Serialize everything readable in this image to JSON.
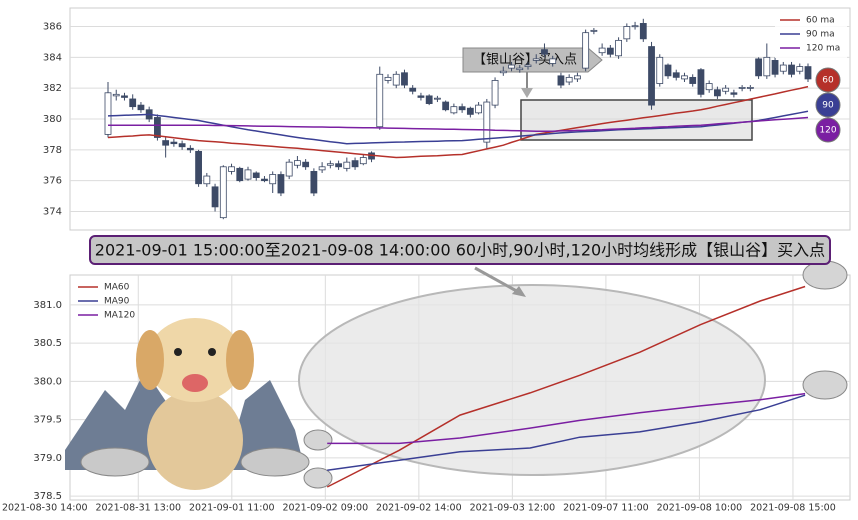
{
  "chart_data": [
    {
      "type": "candlestick",
      "annotation": "【银山谷】买入点",
      "legend": "upper right",
      "grid": true,
      "up_color": "#ffffff",
      "down_color": "#3d4a66",
      "edge_color": "#3d4a66",
      "ylim": [
        372.8,
        387.2
      ],
      "yticks": [
        374,
        376,
        378,
        380,
        382,
        384,
        386
      ],
      "end_labels": [
        "60",
        "90",
        "120"
      ],
      "open": [
        379.0,
        381.5,
        381.5,
        381.3,
        380.9,
        380.6,
        380.1,
        378.6,
        378.5,
        378.4,
        378.1,
        377.9,
        375.8,
        375.6,
        373.6,
        376.6,
        376.8,
        376.1,
        376.5,
        376.1,
        375.8,
        376.4,
        376.3,
        377.0,
        377.2,
        376.6,
        376.7,
        377.0,
        377.1,
        376.8,
        377.3,
        377.1,
        377.8,
        379.5,
        382.5,
        382.2,
        383.0,
        382.0,
        381.5,
        381.5,
        381.3,
        381.1,
        380.4,
        380.8,
        380.7,
        380.4,
        378.5,
        380.9,
        383.0,
        383.3,
        383.2,
        383.4,
        383.8,
        384.5,
        383.6,
        382.8,
        382.4,
        382.6,
        383.3,
        385.7,
        384.3,
        384.6,
        384.1,
        385.2,
        386.0,
        386.2,
        384.7,
        382.3,
        383.5,
        383.0,
        382.6,
        382.7,
        383.2,
        381.9,
        381.9,
        381.8,
        381.7,
        382.0,
        382.0,
        383.9,
        382.8,
        383.8,
        383.1,
        383.5,
        383.1,
        383.4
      ],
      "high": [
        382.4,
        381.9,
        381.7,
        381.6,
        381.1,
        380.8,
        380.3,
        378.8,
        378.7,
        378.6,
        378.3,
        378.0,
        376.5,
        375.8,
        377.0,
        377.1,
        376.9,
        376.9,
        376.6,
        376.3,
        376.6,
        376.6,
        377.4,
        377.6,
        377.4,
        376.8,
        377.2,
        377.3,
        377.3,
        377.5,
        377.5,
        377.7,
        377.9,
        383.4,
        382.9,
        383.1,
        383.2,
        382.2,
        381.7,
        381.6,
        381.5,
        381.2,
        381.0,
        381.0,
        380.8,
        381.1,
        381.3,
        382.7,
        383.4,
        383.7,
        383.5,
        383.7,
        384.2,
        384.9,
        384.1,
        383.0,
        382.9,
        383.0,
        385.8,
        385.9,
        384.9,
        384.8,
        385.3,
        386.2,
        386.3,
        386.5,
        385.0,
        384.2,
        383.6,
        383.2,
        383.0,
        382.9,
        383.3,
        382.5,
        382.1,
        382.2,
        381.9,
        382.2,
        382.2,
        384.0,
        384.9,
        384.0,
        383.7,
        383.7,
        383.6,
        383.6
      ],
      "low": [
        378.8,
        381.2,
        381.2,
        380.6,
        380.4,
        379.8,
        378.6,
        377.5,
        378.2,
        378.0,
        377.8,
        375.6,
        375.6,
        374.0,
        373.5,
        376.4,
        375.9,
        376.0,
        376.0,
        375.9,
        375.2,
        375.0,
        376.1,
        376.8,
        376.7,
        375.0,
        376.5,
        376.8,
        376.7,
        376.6,
        376.7,
        377.0,
        377.2,
        379.3,
        382.3,
        382.0,
        382.0,
        381.6,
        381.2,
        380.9,
        381.1,
        380.5,
        380.3,
        380.4,
        380.1,
        380.3,
        378.1,
        380.7,
        382.8,
        383.1,
        383.0,
        383.2,
        383.6,
        384.0,
        383.4,
        382.0,
        382.2,
        382.4,
        383.1,
        385.5,
        384.1,
        384.0,
        383.9,
        385.0,
        385.8,
        385.0,
        380.6,
        382.1,
        382.6,
        382.5,
        382.4,
        382.1,
        381.4,
        381.7,
        381.3,
        381.6,
        381.4,
        381.8,
        381.8,
        382.6,
        382.6,
        382.7,
        382.9,
        382.7,
        382.9,
        382.4
      ],
      "close": [
        381.7,
        381.6,
        381.4,
        380.8,
        380.6,
        380.0,
        378.8,
        378.3,
        378.4,
        378.2,
        378.0,
        375.8,
        376.3,
        374.3,
        376.9,
        376.9,
        376.0,
        376.7,
        376.2,
        376.0,
        376.4,
        375.2,
        377.2,
        377.3,
        376.9,
        375.2,
        376.9,
        377.1,
        376.9,
        377.2,
        376.9,
        377.5,
        377.4,
        382.9,
        382.7,
        382.9,
        382.2,
        381.8,
        381.4,
        381.0,
        381.35,
        380.6,
        380.8,
        380.6,
        380.3,
        380.9,
        381.1,
        382.5,
        383.1,
        383.5,
        383.3,
        383.5,
        383.9,
        384.2,
        383.9,
        382.2,
        382.7,
        382.8,
        385.6,
        385.75,
        384.6,
        384.2,
        385.1,
        386.0,
        386.05,
        385.2,
        380.9,
        384.0,
        382.8,
        382.7,
        382.8,
        382.3,
        381.6,
        382.3,
        381.5,
        382.0,
        381.6,
        382.05,
        382.05,
        382.8,
        384.0,
        382.9,
        383.5,
        382.9,
        383.4,
        382.6
      ],
      "series": [
        {
          "name": "60 ma",
          "color": "#b5302a",
          "values": [
            378.8,
            378.83,
            378.87,
            378.9,
            378.94,
            378.97,
            378.91,
            378.85,
            378.78,
            378.72,
            378.66,
            378.6,
            378.56,
            378.52,
            378.48,
            378.43,
            378.39,
            378.35,
            378.31,
            378.27,
            378.22,
            378.18,
            378.14,
            378.1,
            378.05,
            378.0,
            377.95,
            377.9,
            377.85,
            377.8,
            377.75,
            377.7,
            377.65,
            377.6,
            377.55,
            377.5,
            377.52,
            377.55,
            377.58,
            377.6,
            377.62,
            377.65,
            377.68,
            377.7,
            377.82,
            377.94,
            378.06,
            378.18,
            378.3,
            378.48,
            378.65,
            378.83,
            379.0,
            379.09,
            379.18,
            379.26,
            379.35,
            379.44,
            379.52,
            379.61,
            379.7,
            379.78,
            379.85,
            379.92,
            380.0,
            380.08,
            380.15,
            380.22,
            380.3,
            380.38,
            380.45,
            380.52,
            380.6,
            380.71,
            380.83,
            380.94,
            381.06,
            381.17,
            381.29,
            381.4,
            381.52,
            381.63,
            381.75,
            381.87,
            381.98,
            382.1
          ]
        },
        {
          "name": "90 ma",
          "color": "#3a3f94",
          "values": [
            380.2,
            380.22,
            380.24,
            380.26,
            380.28,
            380.3,
            380.23,
            380.17,
            380.1,
            380.03,
            379.97,
            379.9,
            379.8,
            379.7,
            379.6,
            379.5,
            379.4,
            379.3,
            379.22,
            379.13,
            379.05,
            378.97,
            378.88,
            378.8,
            378.73,
            378.67,
            378.6,
            378.53,
            378.47,
            378.4,
            378.42,
            378.43,
            378.45,
            378.47,
            378.48,
            378.5,
            378.51,
            378.53,
            378.54,
            378.55,
            378.56,
            378.58,
            378.59,
            378.6,
            378.64,
            378.68,
            378.72,
            378.76,
            378.8,
            378.84,
            378.89,
            378.93,
            378.97,
            379.01,
            379.06,
            379.1,
            379.13,
            379.16,
            379.19,
            379.21,
            379.24,
            379.27,
            379.3,
            379.32,
            379.34,
            379.36,
            379.38,
            379.4,
            379.42,
            379.44,
            379.46,
            379.48,
            379.5,
            379.56,
            379.61,
            379.67,
            379.73,
            379.79,
            379.84,
            379.9,
            380.0,
            380.1,
            380.2,
            380.3,
            380.4,
            380.5
          ]
        },
        {
          "name": "120 ma",
          "color": "#7a1fa2",
          "values": [
            379.6,
            379.6,
            379.6,
            379.6,
            379.6,
            379.6,
            379.6,
            379.6,
            379.6,
            379.6,
            379.6,
            379.6,
            379.59,
            379.58,
            379.58,
            379.57,
            379.56,
            379.55,
            379.54,
            379.53,
            379.53,
            379.52,
            379.51,
            379.5,
            379.49,
            379.48,
            379.48,
            379.47,
            379.46,
            379.45,
            379.44,
            379.43,
            379.43,
            379.42,
            379.41,
            379.4,
            379.39,
            379.38,
            379.37,
            379.36,
            379.35,
            379.34,
            379.33,
            379.32,
            379.31,
            379.3,
            379.29,
            379.27,
            379.26,
            379.25,
            379.24,
            379.22,
            379.21,
            379.2,
            379.21,
            379.23,
            379.24,
            379.26,
            379.27,
            379.29,
            379.3,
            379.33,
            379.35,
            379.38,
            379.4,
            379.43,
            379.45,
            379.48,
            379.5,
            379.53,
            379.55,
            379.58,
            379.6,
            379.64,
            379.68,
            379.72,
            379.75,
            379.79,
            379.83,
            379.87,
            379.91,
            379.95,
            379.98,
            380.02,
            380.06,
            380.1
          ]
        }
      ]
    },
    {
      "type": "line",
      "title": "2021-09-01 15:00:00至2021-09-08 14:00:00 60小时,90小时,120小时均线形成【银山谷】买入点",
      "legend": "upper left",
      "grid": true,
      "xlim": [
        2.7,
        86.1
      ],
      "xticks": [
        {
          "value": 0,
          "label": "2021-08-30 14:00"
        },
        {
          "value": 10,
          "label": "2021-08-31 13:00"
        },
        {
          "value": 20,
          "label": "2021-09-01 11:00"
        },
        {
          "value": 30,
          "label": "2021-09-02 09:00"
        },
        {
          "value": 40,
          "label": "2021-09-02 14:00"
        },
        {
          "value": 50,
          "label": "2021-09-03 12:00"
        },
        {
          "value": 60,
          "label": "2021-09-07 11:00"
        },
        {
          "value": 70,
          "label": "2021-09-08 10:00"
        },
        {
          "value": 80,
          "label": "2021-09-08 15:00"
        }
      ],
      "ylim": [
        378.45,
        381.39
      ],
      "yticks": [
        378.5,
        {
          "value": 379,
          "label": "379.0"
        },
        379.5,
        {
          "value": 380,
          "label": "380.0"
        },
        380.5,
        {
          "value": 381,
          "label": "381.0"
        }
      ],
      "x": [
        30.2,
        37.9,
        44.4,
        51.9,
        57.2,
        63.6,
        70.1,
        76.5,
        81.3
      ],
      "series": [
        {
          "name": "MA60",
          "color": "#b5302a",
          "values": [
            378.62,
            379.1,
            379.56,
            379.85,
            380.08,
            380.38,
            380.74,
            381.05,
            381.24
          ]
        },
        {
          "name": "MA90",
          "color": "#3a3f94",
          "values": [
            378.84,
            378.97,
            379.08,
            379.13,
            379.27,
            379.34,
            379.47,
            379.63,
            379.82
          ]
        },
        {
          "name": "MA120",
          "color": "#7a1fa2",
          "values": [
            379.19,
            379.19,
            379.26,
            379.39,
            379.49,
            379.59,
            379.68,
            379.76,
            379.84
          ]
        }
      ]
    }
  ]
}
